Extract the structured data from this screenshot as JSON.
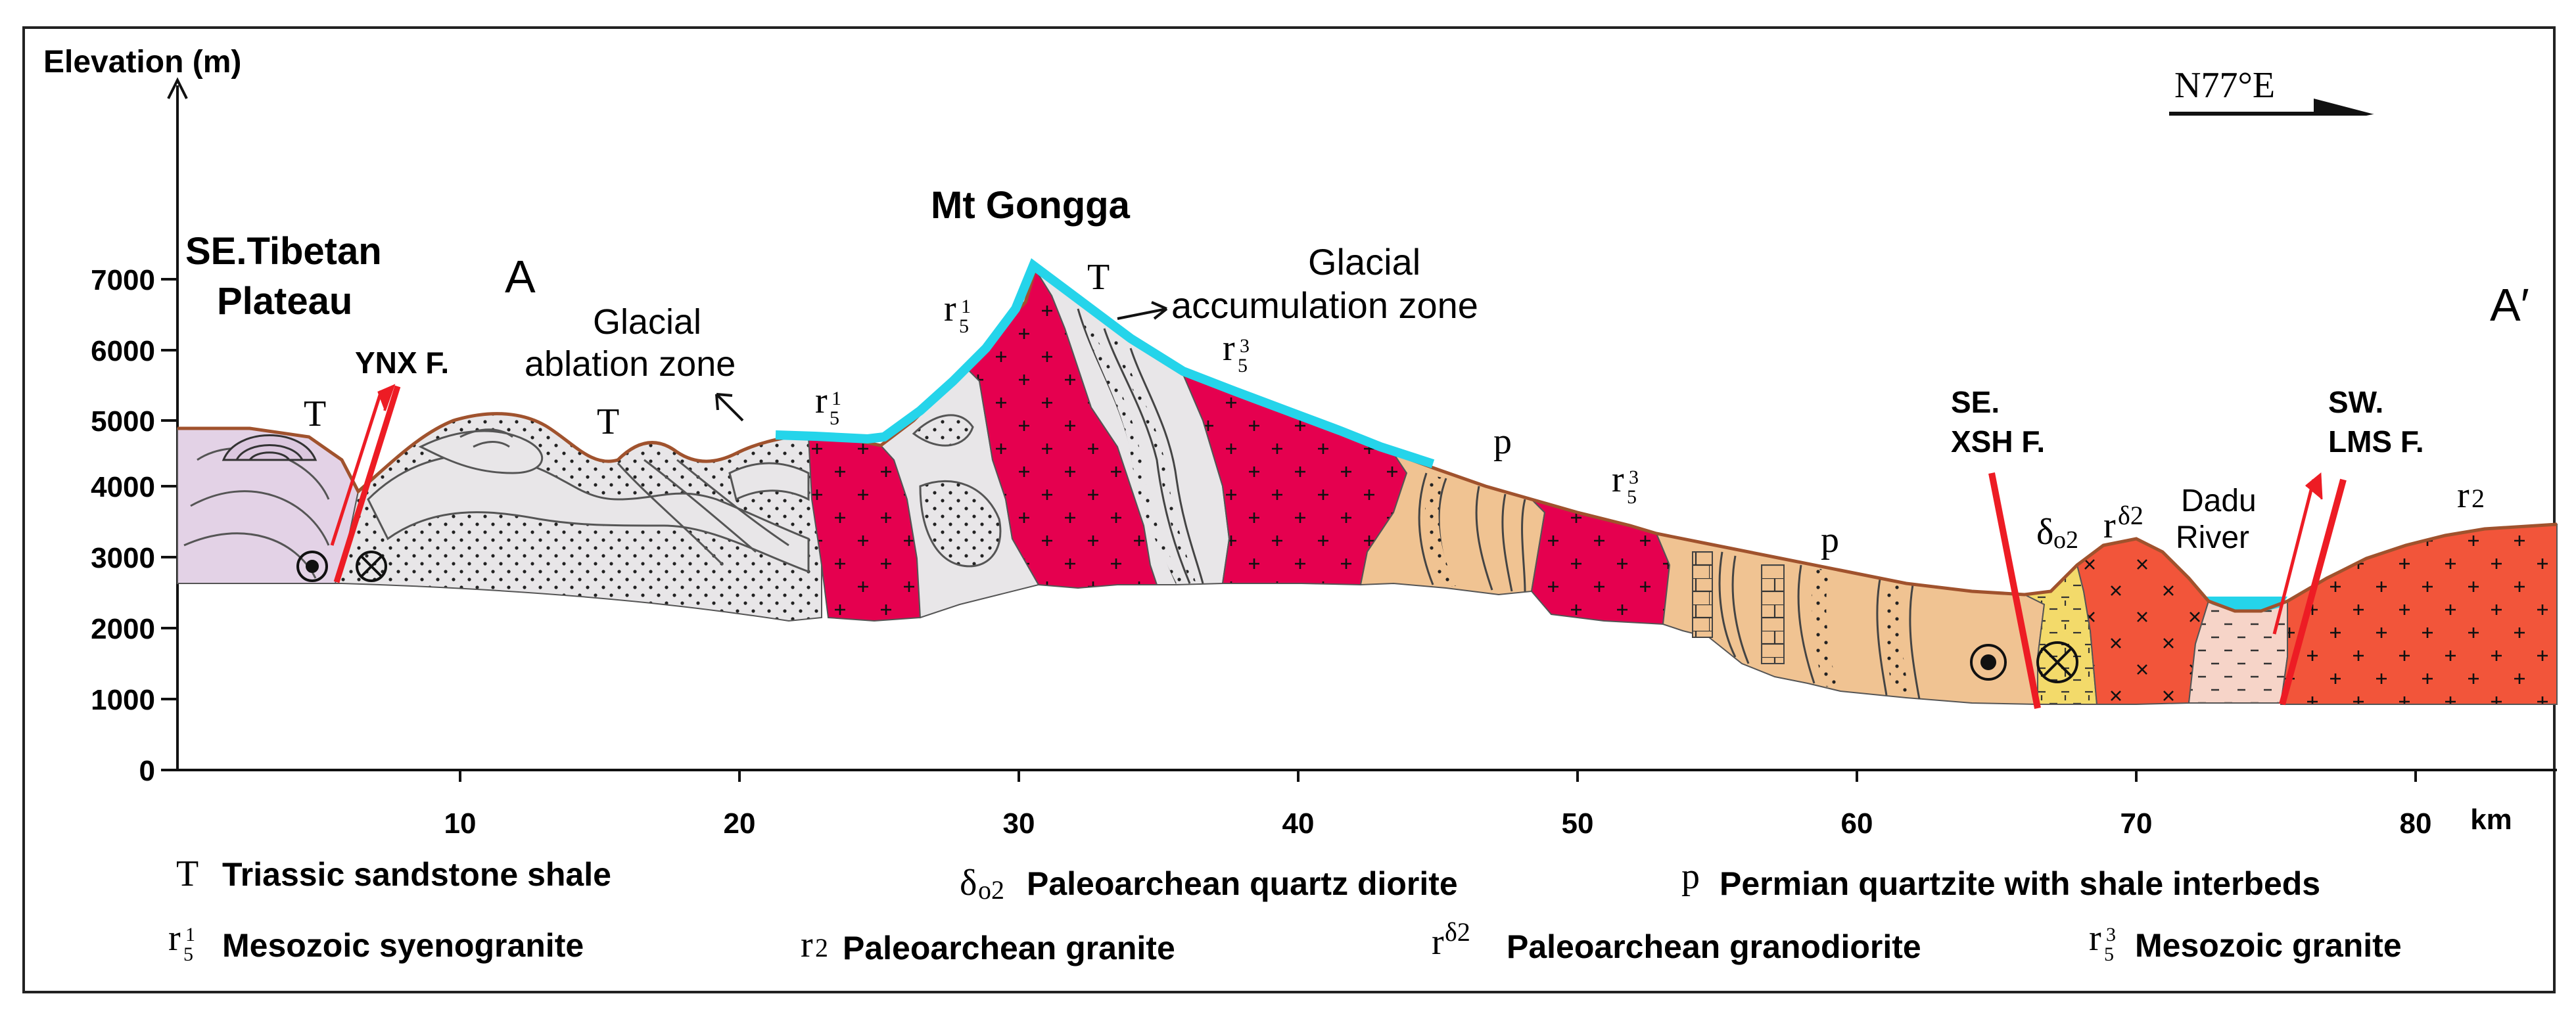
{
  "y_axis": {
    "label": "Elevation (m)",
    "ticks": [
      "0",
      "1000",
      "2000",
      "3000",
      "4000",
      "5000",
      "6000",
      "7000"
    ]
  },
  "x_axis": {
    "ticks": [
      "10",
      "20",
      "30",
      "40",
      "50",
      "60",
      "70",
      "80"
    ],
    "unit": "km"
  },
  "compass": {
    "label": "N77°E"
  },
  "section": {
    "start": "A",
    "end": "A′"
  },
  "places": {
    "plateau_line1": "SE.Tibetan",
    "plateau_line2": "Plateau",
    "peak": "Mt Gongga",
    "river_line1": "Dadu",
    "river_line2": "River"
  },
  "faults": {
    "ynx": "YNX F.",
    "xsh_line1": "SE.",
    "xsh_line2": "XSH F.",
    "lms_line1": "SW.",
    "lms_line2": "LMS F."
  },
  "zones": {
    "ablation_line1": "Glacial",
    "ablation_line2": "ablation zone",
    "accumulation_line1": "Glacial",
    "accumulation_line2": "accumulation zone"
  },
  "map_labels": {
    "T": "T",
    "p": "p",
    "r": "r",
    "sub5": "5",
    "sup1": "1",
    "sup3": "3",
    "delta": "δ",
    "o2": "o2",
    "delta2": "δ2",
    "two": "2"
  },
  "legend": {
    "triassic": "Triassic sandstone shale",
    "diorite": "Paleoarchean quartz diorite",
    "permian": "Permian quartzite with shale interbeds",
    "syenogranite": "Mesozoic syenogranite",
    "granite_r2": "Paleoarchean granite",
    "granodiorite": "Paleoarchean granodiorite",
    "granite_r53": "Mesozoic granite"
  },
  "colors": {
    "triassic": "#e8e6e8",
    "permian": "#f0c392",
    "syenogranite": "#e5004f",
    "granite_r2": "#f2553a",
    "granodiorite": "#f2553a",
    "diorite": "#f3da6a",
    "plateau": "#e3d2e6",
    "river_sed": "#f6d4c8",
    "glacier": "#25d4ea",
    "fault": "#ed1c24",
    "surface": "#a0522d"
  }
}
